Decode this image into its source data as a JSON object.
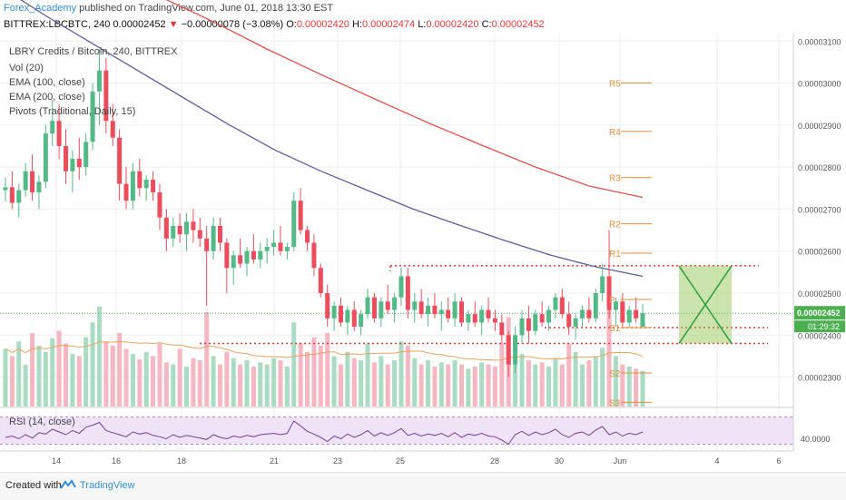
{
  "header": {
    "author": "Forex_Academy",
    "published": "published on TradingView.com, June 01, 2018 13:30 EST",
    "symbol": "BITTREX:LBCBTC, 240",
    "last_price": "0.00002452",
    "change_arrow": "▼",
    "change": "−0.00000078 (−3.08%)",
    "o_label": "O:",
    "o_value": "0.00002420",
    "h_label": "H:",
    "h_value": "0.00002474",
    "l_label": "L:",
    "l_value": "0.00002420",
    "c_label": "C:",
    "c_value": "0.00002452"
  },
  "footer": {
    "created_with": "Created with",
    "brand": "TradingView"
  },
  "colors": {
    "up": "#53b987",
    "down": "#eb4d5c",
    "vol_up": "#a9dcc3",
    "vol_down": "#f5b7c1",
    "ema100": "#5c5ca3",
    "ema200": "#e4514c",
    "pivot": "#e58f3a",
    "rsi": "#7a3d96",
    "rsi_band": "#efe3f8",
    "resistance_dotted": "#e53935",
    "current_price_tag": "#4caf50",
    "grid": "#eeeeee"
  },
  "chart_data": [
    {
      "type": "candlestick",
      "title": "LBRY Credits / Bitcoin, 240, BITTREX",
      "legend": [
        "Vol (20)",
        "EMA (100, close)",
        "EMA (200, close)",
        "Pivots (Traditional, Daily, 15)"
      ],
      "x_ticks": [
        "14",
        "16",
        "18",
        "21",
        "23",
        "25",
        "28",
        "30",
        "Jun",
        "4",
        "6"
      ],
      "y_ticks": [
        "0.00003100",
        "0.00003000",
        "0.00002900",
        "0.00002800",
        "0.00002700",
        "0.00002600",
        "0.00002500",
        "0.00002400",
        "0.00002300"
      ],
      "ylim": [
        2.23e-05,
        3.12e-05
      ],
      "candles": [
        [
          2.745e-05,
          2.775e-05,
          2.718e-05,
          2.752e-05
        ],
        [
          2.752e-05,
          2.79e-05,
          2.7e-05,
          2.715e-05
        ],
        [
          2.715e-05,
          2.76e-05,
          2.68e-05,
          2.745e-05
        ],
        [
          2.745e-05,
          2.81e-05,
          2.73e-05,
          2.79e-05
        ],
        [
          2.79e-05,
          2.83e-05,
          2.72e-05,
          2.74e-05
        ],
        [
          2.74e-05,
          2.78e-05,
          2.7e-05,
          2.765e-05
        ],
        [
          2.765e-05,
          2.9e-05,
          2.75e-05,
          2.88e-05
        ],
        [
          2.88e-05,
          2.96e-05,
          2.85e-05,
          2.91e-05
        ],
        [
          2.91e-05,
          2.95e-05,
          2.82e-05,
          2.85e-05
        ],
        [
          2.85e-05,
          2.89e-05,
          2.76e-05,
          2.79e-05
        ],
        [
          2.79e-05,
          2.84e-05,
          2.74e-05,
          2.82e-05
        ],
        [
          2.82e-05,
          2.87e-05,
          2.77e-05,
          2.8e-05
        ],
        [
          2.8e-05,
          2.88e-05,
          2.78e-05,
          2.86e-05
        ],
        [
          2.86e-05,
          3e-05,
          2.84e-05,
          2.98e-05
        ],
        [
          2.98e-05,
          3.08e-05,
          2.9e-05,
          3.03e-05
        ],
        [
          3.03e-05,
          3.06e-05,
          2.88e-05,
          2.91e-05
        ],
        [
          2.91e-05,
          2.95e-05,
          2.85e-05,
          2.87e-05
        ],
        [
          2.87e-05,
          2.89e-05,
          2.72e-05,
          2.76e-05
        ],
        [
          2.76e-05,
          2.8e-05,
          2.7e-05,
          2.72e-05
        ],
        [
          2.72e-05,
          2.81e-05,
          2.7e-05,
          2.79e-05
        ],
        [
          2.79e-05,
          2.82e-05,
          2.73e-05,
          2.75e-05
        ],
        [
          2.75e-05,
          2.78e-05,
          2.72e-05,
          2.77e-05
        ],
        [
          2.77e-05,
          2.79e-05,
          2.72e-05,
          2.74e-05
        ],
        [
          2.74e-05,
          2.76e-05,
          2.65e-05,
          2.68e-05
        ],
        [
          2.68e-05,
          2.7e-05,
          2.6e-05,
          2.63e-05
        ],
        [
          2.63e-05,
          2.68e-05,
          2.61e-05,
          2.66e-05
        ],
        [
          2.66e-05,
          2.69e-05,
          2.62e-05,
          2.64e-05
        ],
        [
          2.64e-05,
          2.69e-05,
          2.6e-05,
          2.67e-05
        ],
        [
          2.67e-05,
          2.7e-05,
          2.62e-05,
          2.65e-05
        ],
        [
          2.65e-05,
          2.68e-05,
          2.61e-05,
          2.63e-05
        ],
        [
          2.63e-05,
          2.66e-05,
          2.47e-05,
          2.6e-05
        ],
        [
          2.6e-05,
          2.68e-05,
          2.58e-05,
          2.66e-05
        ],
        [
          2.66e-05,
          2.68e-05,
          2.6e-05,
          2.62e-05
        ],
        [
          2.62e-05,
          2.63e-05,
          2.5e-05,
          2.56e-05
        ],
        [
          2.56e-05,
          2.6e-05,
          2.52e-05,
          2.59e-05
        ],
        [
          2.59e-05,
          2.63e-05,
          2.56e-05,
          2.57e-05
        ],
        [
          2.57e-05,
          2.61e-05,
          2.54e-05,
          2.6e-05
        ],
        [
          2.6e-05,
          2.64e-05,
          2.57e-05,
          2.58e-05
        ],
        [
          2.58e-05,
          2.62e-05,
          2.56e-05,
          2.6e-05
        ],
        [
          2.6e-05,
          2.63e-05,
          2.57e-05,
          2.61e-05
        ],
        [
          2.61e-05,
          2.65e-05,
          2.59e-05,
          2.62e-05
        ],
        [
          2.62e-05,
          2.66e-05,
          2.59e-05,
          2.6e-05
        ],
        [
          2.6e-05,
          2.62e-05,
          2.58e-05,
          2.61e-05
        ],
        [
          2.61e-05,
          2.74e-05,
          2.6e-05,
          2.72e-05
        ],
        [
          2.72e-05,
          2.75e-05,
          2.64e-05,
          2.65e-05
        ],
        [
          2.65e-05,
          2.66e-05,
          2.6e-05,
          2.62e-05
        ],
        [
          2.62e-05,
          2.64e-05,
          2.54e-05,
          2.56e-05
        ],
        [
          2.56e-05,
          2.57e-05,
          2.49e-05,
          2.5e-05
        ],
        [
          2.5e-05,
          2.52e-05,
          2.42e-05,
          2.44e-05
        ],
        [
          2.44e-05,
          2.48e-05,
          2.41e-05,
          2.47e-05
        ],
        [
          2.47e-05,
          2.49e-05,
          2.42e-05,
          2.43e-05
        ],
        [
          2.43e-05,
          2.47e-05,
          2.4e-05,
          2.46e-05
        ],
        [
          2.46e-05,
          2.48e-05,
          2.41e-05,
          2.42e-05
        ],
        [
          2.42e-05,
          2.46e-05,
          2.4e-05,
          2.45e-05
        ],
        [
          2.45e-05,
          2.51e-05,
          2.44e-05,
          2.49e-05
        ],
        [
          2.49e-05,
          2.5e-05,
          2.43e-05,
          2.44e-05
        ],
        [
          2.44e-05,
          2.49e-05,
          2.42e-05,
          2.48e-05
        ],
        [
          2.48e-05,
          2.52e-05,
          2.45e-05,
          2.46e-05
        ],
        [
          2.46e-05,
          2.5e-05,
          2.43e-05,
          2.49e-05
        ],
        [
          2.49e-05,
          2.56e-05,
          2.47e-05,
          2.54e-05
        ],
        [
          2.54e-05,
          2.56e-05,
          2.44e-05,
          2.46e-05
        ],
        [
          2.46e-05,
          2.5e-05,
          2.43e-05,
          2.48e-05
        ],
        [
          2.48e-05,
          2.51e-05,
          2.44e-05,
          2.45e-05
        ],
        [
          2.45e-05,
          2.49e-05,
          2.42e-05,
          2.47e-05
        ],
        [
          2.47e-05,
          2.5e-05,
          2.44e-05,
          2.45e-05
        ],
        [
          2.45e-05,
          2.48e-05,
          2.41e-05,
          2.46e-05
        ],
        [
          2.46e-05,
          2.49e-05,
          2.43e-05,
          2.44e-05
        ],
        [
          2.44e-05,
          2.5e-05,
          2.42e-05,
          2.48e-05
        ],
        [
          2.48e-05,
          2.49e-05,
          2.42e-05,
          2.43e-05
        ],
        [
          2.43e-05,
          2.46e-05,
          2.41e-05,
          2.45e-05
        ],
        [
          2.45e-05,
          2.48e-05,
          2.42e-05,
          2.43e-05
        ],
        [
          2.43e-05,
          2.47e-05,
          2.4e-05,
          2.46e-05
        ],
        [
          2.46e-05,
          2.49e-05,
          2.43e-05,
          2.44e-05
        ],
        [
          2.44e-05,
          2.46e-05,
          2.41e-05,
          2.43e-05
        ],
        [
          2.43e-05,
          2.45e-05,
          2.38e-05,
          2.4e-05
        ],
        [
          2.4e-05,
          2.41e-05,
          2.3e-05,
          2.33e-05
        ],
        [
          2.33e-05,
          2.42e-05,
          2.31e-05,
          2.4e-05
        ],
        [
          2.4e-05,
          2.46e-05,
          2.38e-05,
          2.44e-05
        ],
        [
          2.44e-05,
          2.47e-05,
          2.38e-05,
          2.41e-05
        ],
        [
          2.41e-05,
          2.46e-05,
          2.4e-05,
          2.45e-05
        ],
        [
          2.45e-05,
          2.48e-05,
          2.42e-05,
          2.43e-05
        ],
        [
          2.43e-05,
          2.47e-05,
          2.41e-05,
          2.46e-05
        ],
        [
          2.46e-05,
          2.5e-05,
          2.44e-05,
          2.49e-05
        ],
        [
          2.49e-05,
          2.51e-05,
          2.44e-05,
          2.45e-05
        ],
        [
          2.45e-05,
          2.48e-05,
          2.4e-05,
          2.42e-05
        ],
        [
          2.42e-05,
          2.45e-05,
          2.39e-05,
          2.44e-05
        ],
        [
          2.44e-05,
          2.47e-05,
          2.42e-05,
          2.46e-05
        ],
        [
          2.46e-05,
          2.49e-05,
          2.43e-05,
          2.44e-05
        ],
        [
          2.44e-05,
          2.51e-05,
          2.43e-05,
          2.5e-05
        ],
        [
          2.5e-05,
          2.57e-05,
          2.48e-05,
          2.54e-05
        ],
        [
          2.54e-05,
          2.65e-05,
          2.44e-05,
          2.46e-05
        ],
        [
          2.46e-05,
          2.49e-05,
          2.42e-05,
          2.48e-05
        ],
        [
          2.48e-05,
          2.5e-05,
          2.42e-05,
          2.43e-05
        ],
        [
          2.43e-05,
          2.47e-05,
          2.42e-05,
          2.46e-05
        ],
        [
          2.46e-05,
          2.49e-05,
          2.43e-05,
          2.44e-05
        ],
        [
          2.42e-05,
          2.474e-05,
          2.42e-05,
          2.452e-05
        ]
      ],
      "volume": [
        55,
        48,
        62,
        40,
        70,
        58,
        52,
        65,
        72,
        60,
        50,
        48,
        66,
        80,
        95,
        62,
        58,
        70,
        55,
        50,
        45,
        52,
        48,
        60,
        42,
        40,
        55,
        38,
        46,
        44,
        90,
        48,
        40,
        52,
        46,
        40,
        44,
        38,
        42,
        40,
        46,
        44,
        38,
        80,
        60,
        52,
        66,
        58,
        70,
        48,
        40,
        52,
        46,
        44,
        60,
        42,
        48,
        40,
        44,
        62,
        58,
        46,
        40,
        44,
        38,
        42,
        40,
        44,
        40,
        36,
        38,
        42,
        40,
        38,
        60,
        85,
        65,
        50,
        44,
        40,
        42,
        38,
        46,
        40,
        60,
        52,
        40,
        44,
        48,
        56,
        92,
        48,
        40,
        38,
        36,
        34
      ],
      "ema100": [
        3.23e-05,
        3.16e-05,
        3.095e-05,
        3.03e-05,
        2.965e-05,
        2.9e-05,
        2.84e-05,
        2.79e-05,
        2.745e-05,
        2.7e-05,
        2.662e-05,
        2.625e-05,
        2.59e-05,
        2.562e-05,
        2.54e-05
      ],
      "ema200": [
        3.4e-05,
        3.33e-05,
        3.27e-05,
        3.205e-05,
        3.145e-05,
        3.08e-05,
        3.02e-05,
        2.962e-05,
        2.905e-05,
        2.852e-05,
        2.8e-05,
        2.755e-05,
        2.728e-05
      ],
      "pivots": [
        {
          "label": "R5",
          "value": 3e-05
        },
        {
          "label": "R4",
          "value": 2.885e-05
        },
        {
          "label": "R3",
          "value": 2.775e-05
        },
        {
          "label": "R2",
          "value": 2.665e-05
        },
        {
          "label": "R1",
          "value": 2.595e-05
        },
        {
          "label": "P",
          "value": 2.485e-05
        },
        {
          "label": "S1",
          "value": 2.418e-05
        },
        {
          "label": "S2",
          "value": 2.31e-05
        },
        {
          "label": "S3",
          "value": 2.24e-05
        }
      ],
      "resistance_line": 2.565e-05,
      "support_line": 2.38e-05,
      "support_s1_line": 2.418e-05,
      "current_price_label": "0.00002452",
      "countdown_label": "01:29:32"
    },
    {
      "type": "line",
      "title": "RSI (14, close)",
      "y_ticks": [
        "40.0000"
      ],
      "ylim": [
        20,
        80
      ],
      "band": [
        30,
        70
      ],
      "values": [
        40,
        42,
        38,
        44,
        39,
        47,
        45,
        52,
        48,
        44,
        50,
        46,
        55,
        58,
        62,
        50,
        47,
        44,
        41,
        48,
        45,
        47,
        43,
        41,
        38,
        44,
        40,
        43,
        41,
        39,
        37,
        44,
        40,
        38,
        42,
        40,
        43,
        41,
        44,
        45,
        46,
        44,
        46,
        64,
        57,
        49,
        45,
        40,
        34,
        42,
        38,
        45,
        40,
        44,
        50,
        42,
        47,
        43,
        47,
        53,
        43,
        46,
        42,
        45,
        43,
        46,
        41,
        47,
        40,
        45,
        43,
        46,
        42,
        41,
        36,
        30,
        44,
        49,
        43,
        48,
        44,
        47,
        52,
        44,
        40,
        46,
        48,
        43,
        51,
        56,
        44,
        48,
        42,
        46,
        44,
        48
      ]
    }
  ]
}
